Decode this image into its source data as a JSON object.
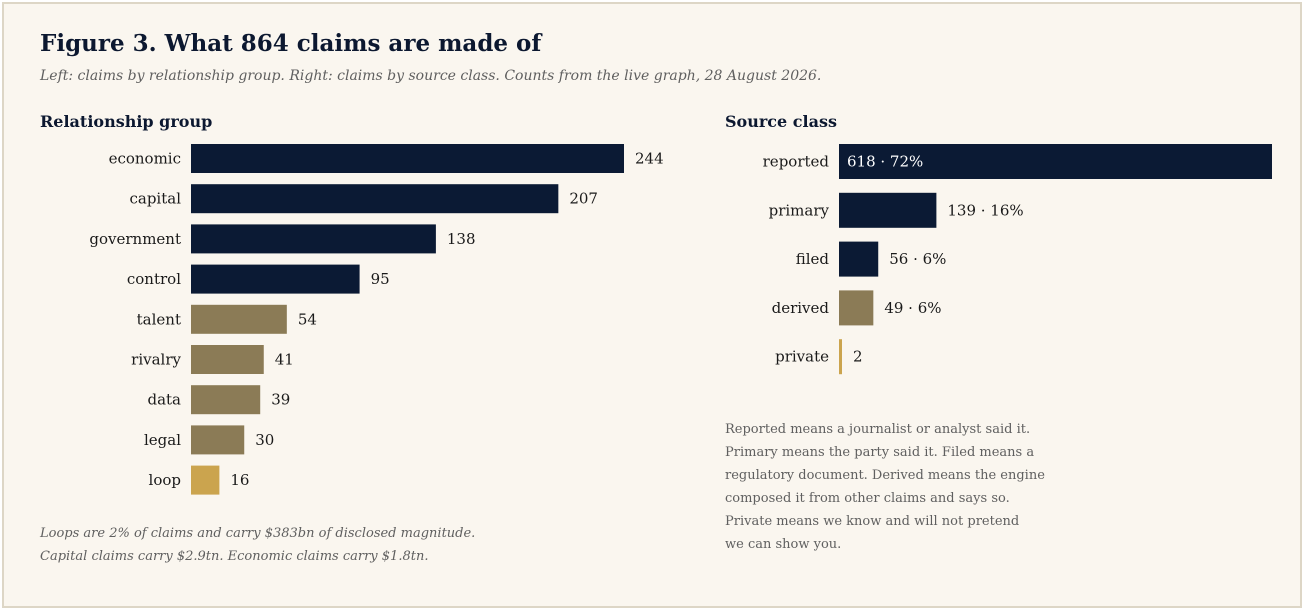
{
  "figure": {
    "title": "Figure 3. What 864 claims are made of",
    "subtitle": "Left: claims by relationship group. Right: claims by source class. Counts from the live graph, 28 August 2026."
  },
  "colors": {
    "navy": "#0b1a34",
    "khaki": "#8b7b56",
    "gold": "#cba44e",
    "background": "#faf6ef"
  },
  "chart_data": [
    {
      "type": "bar",
      "orientation": "horizontal",
      "title": "Relationship group",
      "categories": [
        "economic",
        "capital",
        "government",
        "control",
        "talent",
        "rivalry",
        "data",
        "legal",
        "loop"
      ],
      "values": [
        244,
        207,
        138,
        95,
        54,
        41,
        39,
        30,
        16
      ],
      "value_labels": [
        "244",
        "207",
        "138",
        "95",
        "54",
        "41",
        "39",
        "30",
        "16"
      ],
      "bar_colors": [
        "navy",
        "navy",
        "navy",
        "navy",
        "khaki",
        "khaki",
        "khaki",
        "khaki",
        "gold"
      ],
      "xlim": [
        0,
        244
      ],
      "grid": false,
      "legend": "none"
    },
    {
      "type": "bar",
      "orientation": "horizontal",
      "title": "Source class",
      "categories": [
        "reported",
        "primary",
        "filed",
        "derived",
        "private"
      ],
      "values": [
        618,
        139,
        56,
        49,
        2
      ],
      "value_labels": [
        "618 · 72%",
        "139 · 16%",
        "56 · 6%",
        "49 · 6%",
        "2"
      ],
      "label_inside": [
        true,
        false,
        false,
        false,
        false
      ],
      "bar_colors": [
        "navy",
        "navy",
        "navy",
        "khaki",
        "gold"
      ],
      "xlim": [
        0,
        618
      ],
      "grid": false,
      "legend": "none"
    }
  ],
  "notes": {
    "left": [
      "Loops are 2% of claims and carry $383bn of disclosed magnitude.",
      "Capital claims carry $2.9tn. Economic claims carry $1.8tn."
    ],
    "right": [
      "Reported means a journalist or analyst said it.",
      "Primary means the party said it. Filed means a",
      "regulatory document. Derived means the engine",
      "composed it from other claims and says so.",
      "Private means we know and will not pretend",
      "we can show you."
    ]
  }
}
